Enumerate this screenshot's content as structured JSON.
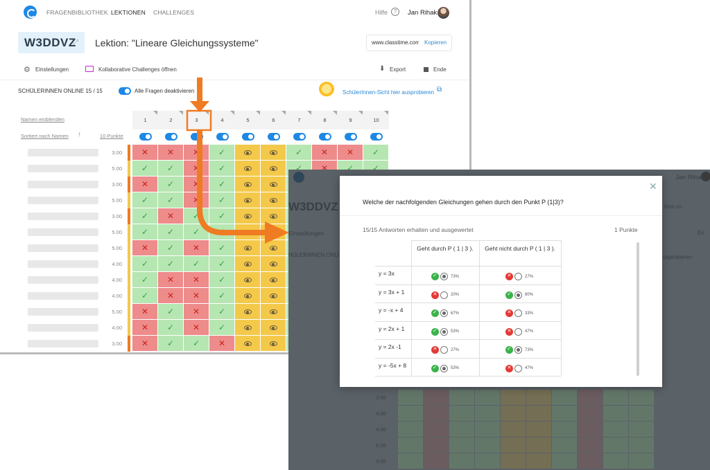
{
  "nav": {
    "items": [
      "FRAGENBIBLIOTHEK",
      "LEKTIONEN",
      "CHALLENGES"
    ],
    "help": "Hilfe",
    "user": "Jan Rihak"
  },
  "header": {
    "code": "W3DDVZ",
    "lesson_title": "Lektion: \"Lineare Gleichungssysteme\"",
    "url": "www.classtime.com",
    "copy": "Kopieren"
  },
  "toolbar": {
    "settings": "Einstellungen",
    "challenges": "Kollaborative Challenges öffnen",
    "export": "Export",
    "end": "Ende"
  },
  "status": {
    "online": "SCHÜLERINNEN ONLINE 15 / 15",
    "deactivate": "Alle Fragen deaktivieren",
    "student_view": "SchülerInnen-Sicht hier ausprobieren"
  },
  "grid": {
    "show_names": "Namen einblenden",
    "sort": "Sortiert nach Namen",
    "points": "10 Punkte",
    "columns": [
      "1",
      "2",
      "3",
      "4",
      "5",
      "6",
      "7",
      "8",
      "9",
      "10"
    ],
    "rows": [
      {
        "score": "3.00",
        "cells": [
          "x",
          "x",
          "x",
          "c",
          "e",
          "e",
          "c",
          "x",
          "x",
          "c"
        ]
      },
      {
        "score": "5.00",
        "cells": [
          "c",
          "c",
          "x",
          "c",
          "e",
          "e",
          "c",
          "x",
          "c",
          "c"
        ]
      },
      {
        "score": "3.00",
        "cells": [
          "x",
          "c",
          "x",
          "c",
          "e",
          "e",
          "c",
          "x",
          "c",
          "c"
        ]
      },
      {
        "score": "5.00",
        "cells": [
          "c",
          "c",
          "x",
          "c",
          "e",
          "e",
          "c",
          "x",
          "c",
          "c"
        ]
      },
      {
        "score": "3.00",
        "cells": [
          "c",
          "x",
          "c",
          "c",
          "e",
          "e",
          "c",
          "x",
          "c",
          "c"
        ]
      },
      {
        "score": "5.00",
        "cells": [
          "c",
          "c",
          "c",
          "c",
          "e",
          "e",
          "c",
          "x",
          "c",
          "c"
        ]
      },
      {
        "score": "5.00",
        "cells": [
          "x",
          "c",
          "x",
          "c",
          "e",
          "e",
          "c",
          "x",
          "c",
          "c"
        ]
      },
      {
        "score": "4.00",
        "cells": [
          "c",
          "c",
          "c",
          "c",
          "e",
          "e",
          "c",
          "x",
          "c",
          "c"
        ]
      },
      {
        "score": "4.00",
        "cells": [
          "c",
          "x",
          "x",
          "c",
          "e",
          "e",
          "c",
          "x",
          "c",
          "c"
        ]
      },
      {
        "score": "4.00",
        "cells": [
          "c",
          "x",
          "x",
          "c",
          "e",
          "e",
          "c",
          "x",
          "c",
          "c"
        ]
      },
      {
        "score": "5.00",
        "cells": [
          "x",
          "c",
          "x",
          "c",
          "e",
          "e",
          "c",
          "x",
          "c",
          "c"
        ]
      },
      {
        "score": "4.00",
        "cells": [
          "x",
          "c",
          "x",
          "c",
          "e",
          "e",
          "c",
          "x",
          "c",
          "c"
        ]
      },
      {
        "score": "3.00",
        "cells": [
          "x",
          "c",
          "c",
          "x",
          "e",
          "e",
          "c",
          "x",
          "c",
          "c"
        ]
      }
    ]
  },
  "background_ghost": {
    "user": "Jan Rihak",
    "settings": "Einstellungen",
    "code": "W3DDVZ",
    "online_fragment": "HÜLERINNEN ONLI",
    "end": "En",
    "url_fragment": "lime.co",
    "kopieren_fragment": "opieren",
    "student_fragment": "usprobieren",
    "scores": [
      "3.00",
      "4.00",
      "4.00",
      "5.00"
    ]
  },
  "modal": {
    "question": "Welche der nachfolgenden Gleichungen gehen durch den Punkt P (1|3)?",
    "answers": "15/15 Antworten erhalten und ausgewertet",
    "points": "1 Punkte",
    "col_yes": "Geht durch P ( 1 | 3 ).",
    "col_no": "Geht nicht durch P ( 1 | 3 ).",
    "rows": [
      {
        "eq": "y = 3x",
        "yes_ok": true,
        "yes_sel": true,
        "yes_pct": "73%",
        "no_ok": false,
        "no_sel": false,
        "no_pct": "27%"
      },
      {
        "eq": "y = 3x + 1",
        "yes_ok": false,
        "yes_sel": false,
        "yes_pct": "20%",
        "no_ok": true,
        "no_sel": true,
        "no_pct": "80%"
      },
      {
        "eq": "y = -x + 4",
        "yes_ok": true,
        "yes_sel": true,
        "yes_pct": "67%",
        "no_ok": false,
        "no_sel": false,
        "no_pct": "33%"
      },
      {
        "eq": "y = 2x + 1",
        "yes_ok": true,
        "yes_sel": true,
        "yes_pct": "53%",
        "no_ok": false,
        "no_sel": false,
        "no_pct": "47%"
      },
      {
        "eq": "y = 2x -1",
        "yes_ok": false,
        "yes_sel": false,
        "yes_pct": "27%",
        "no_ok": true,
        "no_sel": true,
        "no_pct": "73%"
      },
      {
        "eq": "y = -5x + 8",
        "yes_ok": true,
        "yes_sel": true,
        "yes_pct": "53%",
        "no_ok": false,
        "no_sel": false,
        "no_pct": "47%"
      }
    ]
  },
  "colors": {
    "accent": "#1e88e5",
    "wrong": "#ee8b8b",
    "correct": "#b6e6b2",
    "revealed": "#f4c94a",
    "arrow": "#ef7b22"
  }
}
